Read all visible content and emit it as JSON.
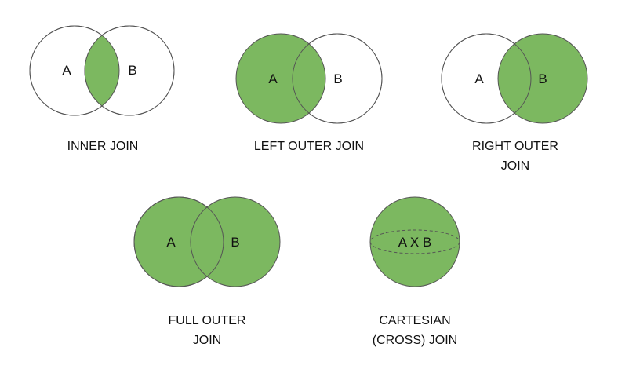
{
  "colors": {
    "fill": "#7cb860",
    "stroke": "#555555",
    "background": "#ffffff"
  },
  "diagrams": {
    "inner": {
      "a_label": "A",
      "b_label": "B",
      "caption": [
        "INNER JOIN"
      ]
    },
    "left": {
      "a_label": "A",
      "b_label": "B",
      "caption": [
        "LEFT OUTER JOIN"
      ]
    },
    "right": {
      "a_label": "A",
      "b_label": "B",
      "caption": [
        "RIGHT OUTER",
        "JOIN"
      ]
    },
    "full": {
      "a_label": "A",
      "b_label": "B",
      "caption": [
        "FULL OUTER",
        "JOIN"
      ]
    },
    "cartesian": {
      "label": "A X B",
      "caption": [
        "CARTESIAN",
        "(CROSS) JOIN"
      ]
    }
  }
}
